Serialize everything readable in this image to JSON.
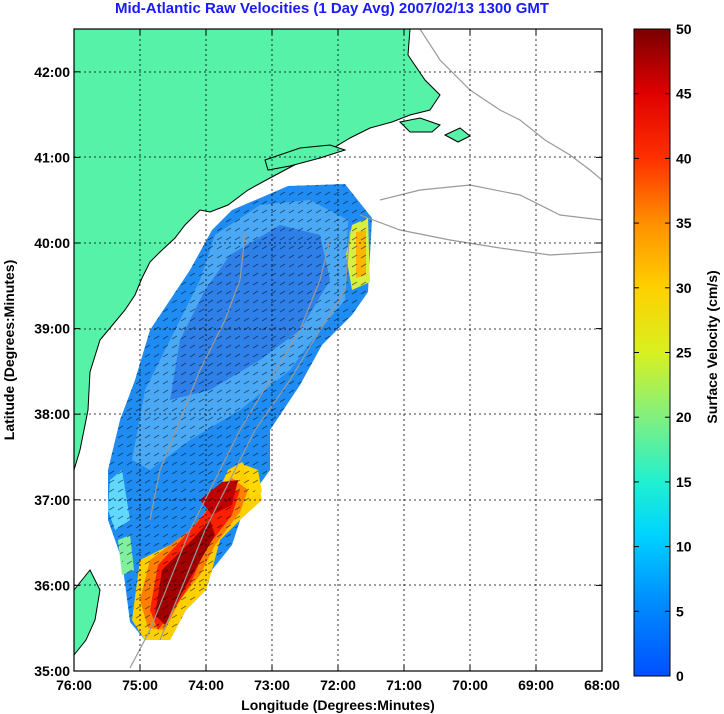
{
  "title": "Mid-Atlantic Raw Velocities (1 Day Avg) 2007/02/13 1300 GMT",
  "x_axis": {
    "label": "Longitude (Degrees:Minutes)",
    "ticks": [
      "76:00",
      "75:00",
      "74:00",
      "73:00",
      "72:00",
      "71:00",
      "70:00",
      "69:00",
      "68:00"
    ]
  },
  "y_axis": {
    "label": "Latitude (Degrees:Minutes)",
    "ticks": [
      "35:00",
      "36:00",
      "37:00",
      "38:00",
      "39:00",
      "40:00",
      "41:00",
      "42:00"
    ]
  },
  "colorbar": {
    "label": "Surface Velocity (cm/s)",
    "ticks": [
      "0",
      "5",
      "10",
      "15",
      "20",
      "25",
      "30",
      "35",
      "40",
      "45",
      "50"
    ],
    "range": [
      0,
      50
    ]
  },
  "colors": {
    "land": "#55f2a8",
    "coast": "#000000",
    "bathymetry": "#9a9a9a",
    "title": "#1a1aff"
  }
}
